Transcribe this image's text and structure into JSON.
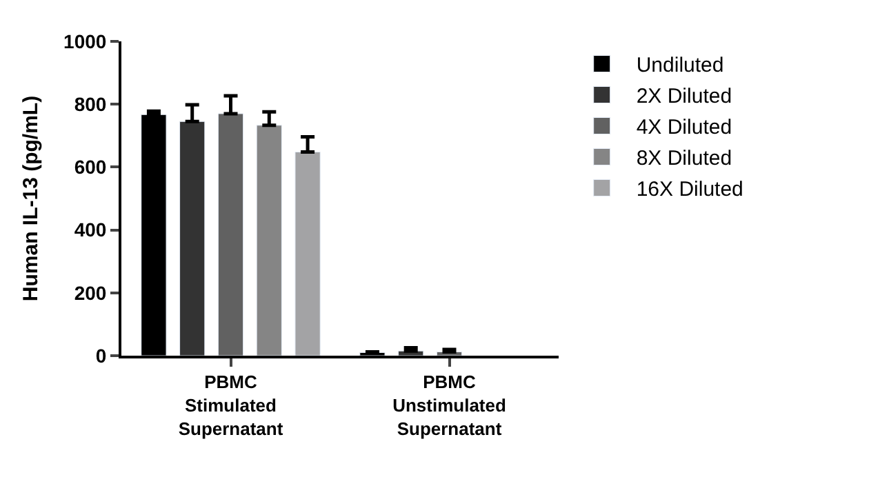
{
  "chart_data": {
    "type": "bar",
    "ylabel": "Human IL-13 (pg/mL)",
    "categories": [
      "PBMC\nStimulated\nSupernatant",
      "PBMC\nUnstimulated\nSupernatant"
    ],
    "series": [
      {
        "name": "Undiluted",
        "color": "#000000",
        "values": [
          767,
          10
        ],
        "errors": [
          [
            767,
            778
          ],
          [
            10,
            12
          ]
        ]
      },
      {
        "name": "2X Diluted",
        "color": "#333333",
        "values": [
          745,
          15
        ],
        "errors": [
          [
            745,
            798
          ],
          [
            15,
            25
          ]
        ]
      },
      {
        "name": "4X Diluted",
        "color": "#616161",
        "values": [
          770,
          12
        ],
        "errors": [
          [
            770,
            827
          ],
          [
            12,
            20
          ]
        ]
      },
      {
        "name": "8X Diluted",
        "color": "#858585",
        "values": [
          733,
          null
        ],
        "errors": [
          [
            733,
            776
          ],
          null
        ]
      },
      {
        "name": "16X Diluted",
        "color": "#a3a3a5",
        "values": [
          648,
          null
        ],
        "errors": [
          [
            648,
            696
          ],
          null
        ]
      }
    ],
    "ylim": [
      0,
      1000
    ],
    "yticks": [
      0,
      200,
      400,
      600,
      800,
      1000
    ],
    "legend": "right"
  }
}
